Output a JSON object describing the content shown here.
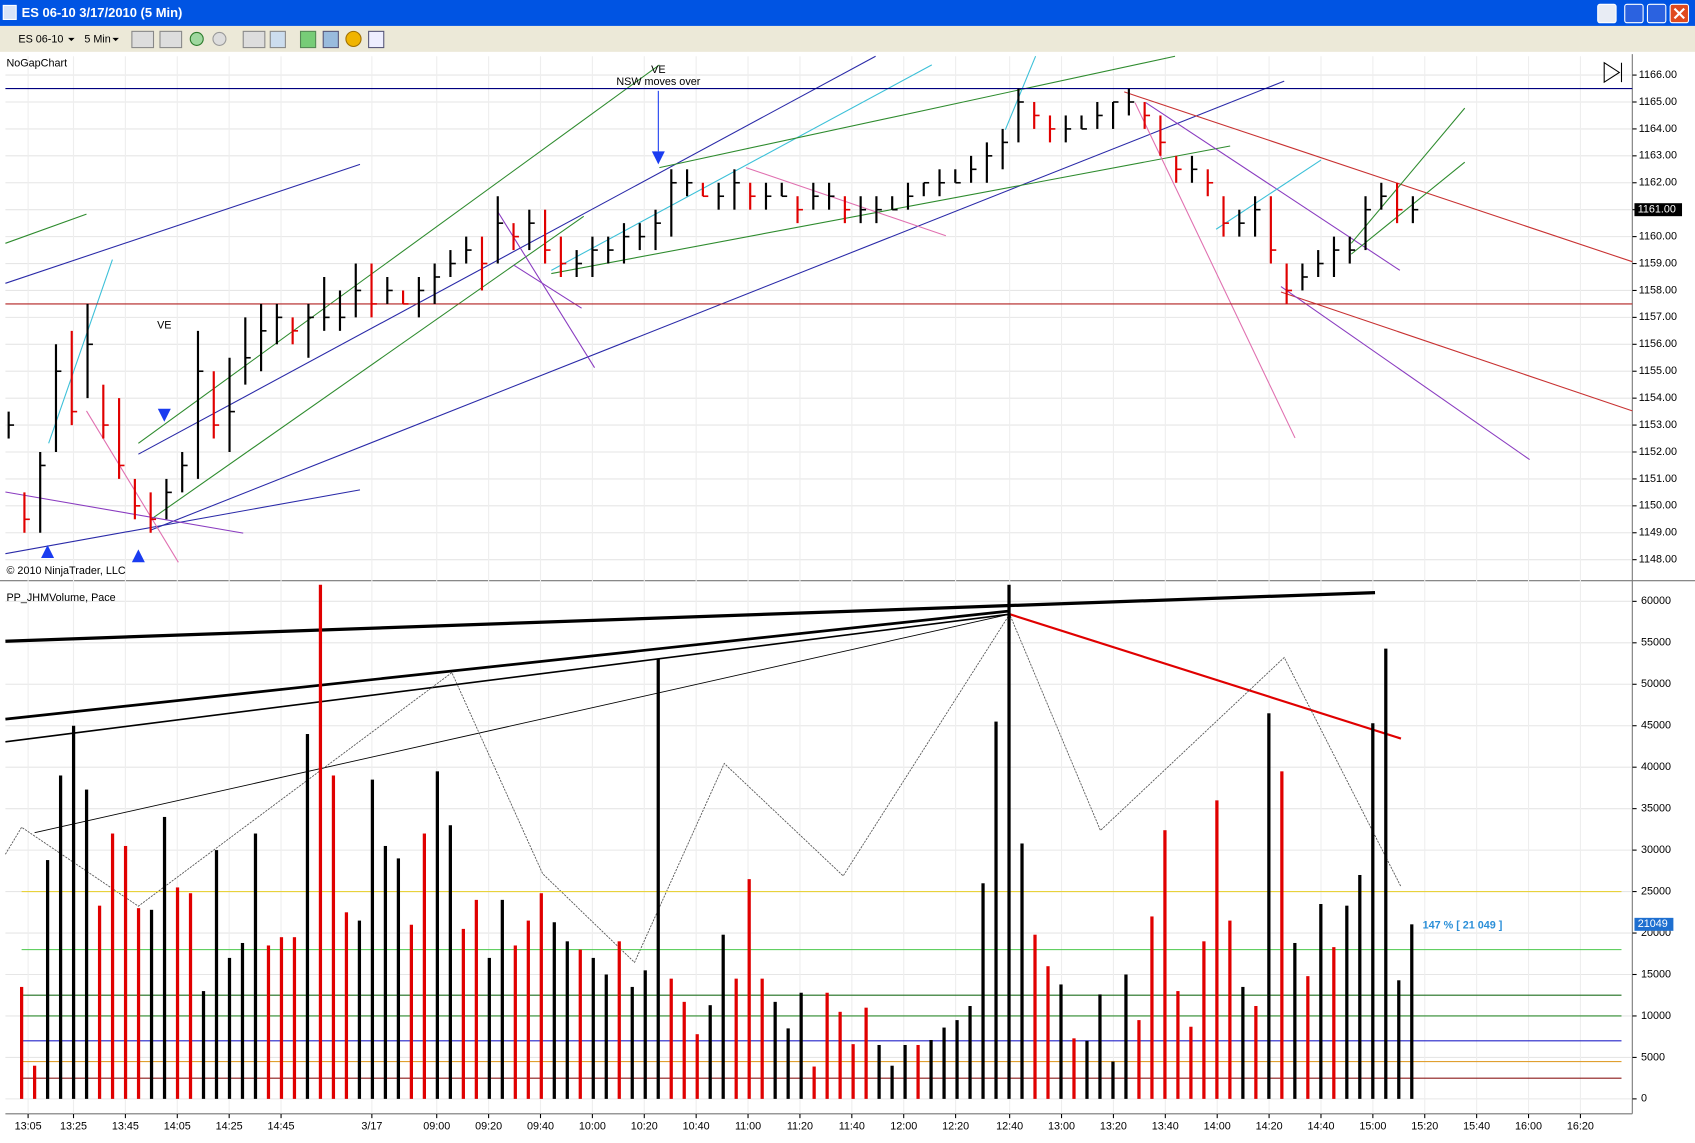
{
  "window": {
    "title": "ES 06-10  3/17/2010 (5 Min)"
  },
  "toolbar": {
    "instrument": "ES 06-10",
    "interval": "5 Min"
  },
  "chart_data": [
    {
      "type": "ohlc",
      "title": "NoGapChart",
      "copyright": "© 2010 NinjaTrader, LLC",
      "annotations": [
        "VE",
        "VE",
        "NSW moves over"
      ],
      "high": [
        1153.5,
        1150.5,
        1152,
        1156,
        1156.5,
        1157.5,
        1154.5,
        1154,
        1151,
        1150.5,
        1151,
        1152,
        1156.5,
        1155,
        1155.5,
        1157,
        1157.5,
        1157.5,
        1157,
        1157.5,
        1158.5,
        1158,
        1159,
        1159,
        1158.5,
        1158,
        1158.5,
        1159,
        1159.5,
        1160,
        1160,
        1161.5,
        1160.5,
        1161,
        1161,
        1160,
        1159.5,
        1160,
        1160,
        1160.5,
        1160.5,
        1161,
        1162.5,
        1162.5,
        1162,
        1162,
        1162.5,
        1162,
        1162,
        1162,
        1161.5,
        1162,
        1162,
        1161.5,
        1161.5,
        1161.5,
        1161.5,
        1162,
        1162,
        1162.5,
        1162.5,
        1163,
        1163.5,
        1164,
        1165.5,
        1165,
        1164.5,
        1164.5,
        1164.5,
        1165,
        1165,
        1165.5,
        1165,
        1164.5,
        1163,
        1163,
        1162.5,
        1161.5,
        1161,
        1161.5,
        1161.5,
        1159,
        1159,
        1159.5,
        1160,
        1160,
        1161.5,
        1162,
        1162,
        1161.5
      ],
      "low": [
        1152.5,
        1149,
        1149,
        1152,
        1153,
        1154,
        1152.5,
        1151,
        1149.5,
        1149,
        1149.5,
        1150.5,
        1151,
        1152.5,
        1152,
        1154.5,
        1155,
        1156,
        1156,
        1155.5,
        1156.5,
        1156.5,
        1157,
        1157,
        1157.5,
        1157.5,
        1157,
        1157.5,
        1158.5,
        1159,
        1158,
        1159,
        1159.5,
        1159.5,
        1159,
        1158.5,
        1158.5,
        1158.5,
        1159,
        1159,
        1159.5,
        1159.5,
        1160,
        1161.5,
        1161.5,
        1161,
        1161,
        1161,
        1161,
        1161.5,
        1160.5,
        1161,
        1161,
        1160.5,
        1160.5,
        1160.5,
        1161,
        1161,
        1161.5,
        1161.5,
        1162,
        1162,
        1162,
        1162.5,
        1163.5,
        1164,
        1163.5,
        1163.5,
        1164,
        1164,
        1164,
        1164.5,
        1164,
        1163,
        1162,
        1162,
        1161.5,
        1160,
        1160,
        1160,
        1159,
        1157.5,
        1158,
        1158.5,
        1158.5,
        1159,
        1159.5,
        1161,
        1160.5,
        1160.5
      ],
      "close": [
        1153,
        1149.5,
        1151.5,
        1155,
        1153.5,
        1156,
        1153,
        1151.5,
        1150,
        1149.5,
        1150.5,
        1151.5,
        1155,
        1153,
        1153.5,
        1155.5,
        1156.5,
        1157,
        1156.5,
        1157,
        1157,
        1157,
        1158,
        1157.5,
        1158,
        1157.5,
        1158,
        1158.5,
        1159,
        1159.5,
        1159,
        1160.5,
        1160,
        1160.5,
        1159.5,
        1159,
        1159,
        1159.5,
        1159.5,
        1160,
        1160,
        1160.5,
        1162,
        1162,
        1161.5,
        1161.5,
        1162,
        1161.5,
        1161.5,
        1161.5,
        1161,
        1161.5,
        1161.5,
        1161,
        1161,
        1161,
        1161,
        1161.5,
        1162,
        1162,
        1162,
        1162.5,
        1163,
        1163.5,
        1165,
        1164.5,
        1164,
        1164,
        1164,
        1164.5,
        1165,
        1165,
        1164.5,
        1163.5,
        1162.5,
        1162.5,
        1162,
        1160.5,
        1160.5,
        1161,
        1159.5,
        1158,
        1158.5,
        1159,
        1159.5,
        1159.5,
        1161,
        1161.5,
        1161,
        1161
      ],
      "ylim": [
        1147.3,
        1166.7
      ],
      "yticks": [
        {
          "value": 1148,
          "label": "1148.00"
        },
        {
          "value": 1149,
          "label": "1149.00"
        },
        {
          "value": 1150,
          "label": "1150.00"
        },
        {
          "value": 1151,
          "label": "1151.00"
        },
        {
          "value": 1152,
          "label": "1152.00"
        },
        {
          "value": 1153,
          "label": "1153.00"
        },
        {
          "value": 1154,
          "label": "1154.00"
        },
        {
          "value": 1155,
          "label": "1155.00"
        },
        {
          "value": 1156,
          "label": "1156.00"
        },
        {
          "value": 1157,
          "label": "1157.00"
        },
        {
          "value": 1158,
          "label": "1158.00"
        },
        {
          "value": 1159,
          "label": "1159.00"
        },
        {
          "value": 1160,
          "label": "1160.00"
        },
        {
          "value": 1161,
          "label": "1161.00"
        },
        {
          "value": 1162,
          "label": "1162.00"
        },
        {
          "value": 1163,
          "label": "1163.00"
        },
        {
          "value": 1164,
          "label": "1164.00"
        },
        {
          "value": 1165,
          "label": "1165.00"
        },
        {
          "value": 1166,
          "label": "1166.00"
        }
      ],
      "last_price": {
        "value": 1161,
        "label": "1161.00"
      },
      "levels": [
        {
          "value": 1165.5,
          "color": "#00007f"
        },
        {
          "value": 1157.5,
          "color": "#b22222"
        }
      ],
      "grid": true
    },
    {
      "type": "bar",
      "title": "PP_JHMVolume, Pace",
      "pace_label": "147 % [ 21 049 ]",
      "values": [
        13500,
        4000,
        28800,
        39000,
        45000,
        37300,
        23300,
        32000,
        30500,
        23000,
        22800,
        34000,
        25500,
        24800,
        13000,
        30000,
        17000,
        18800,
        32000,
        18500,
        19500,
        19500,
        44000,
        62000,
        39000,
        22500,
        21500,
        38500,
        30500,
        29000,
        21000,
        32000,
        39500,
        33000,
        20500,
        24000,
        17000,
        24000,
        18500,
        21500,
        24800,
        21300,
        19000,
        18000,
        17000,
        15000,
        19000,
        13500,
        15500,
        53000,
        14500,
        11700,
        7800,
        11300,
        19800,
        14500,
        26500,
        14500,
        11700,
        8500,
        12800,
        3900,
        12800,
        10500,
        6600,
        11000,
        6500,
        4000,
        6500,
        6500,
        7100,
        8600,
        9500,
        11200,
        26000,
        45500,
        62000,
        30800,
        19800,
        16000,
        13800,
        7300,
        7000,
        12600,
        4500,
        15000,
        9500,
        22000,
        32400,
        13000,
        8700,
        19000,
        36000,
        21500,
        13500,
        11200,
        46500,
        39500,
        18800,
        14800,
        23500,
        18300,
        23300,
        27000,
        45300,
        54300,
        14300,
        21049
      ],
      "colors": [
        "#e00000",
        "#e00000",
        "#000000",
        "#000000",
        "#000000",
        "#000000",
        "#e00000",
        "#e00000",
        "#e00000",
        "#e00000",
        "#000000",
        "#000000",
        "#e00000",
        "#e00000",
        "#000000",
        "#000000",
        "#000000",
        "#000000",
        "#000000",
        "#e00000",
        "#e00000",
        "#e00000",
        "#000000",
        "#e00000",
        "#e00000",
        "#e00000",
        "#000000",
        "#000000",
        "#000000",
        "#000000",
        "#e00000",
        "#e00000",
        "#000000",
        "#000000",
        "#e00000",
        "#e00000",
        "#000000",
        "#000000",
        "#e00000",
        "#e00000",
        "#e00000",
        "#000000",
        "#000000",
        "#e00000",
        "#000000",
        "#000000",
        "#e00000",
        "#000000",
        "#000000",
        "#000000",
        "#e00000",
        "#e00000",
        "#e00000",
        "#000000",
        "#000000",
        "#e00000",
        "#e00000",
        "#e00000",
        "#000000",
        "#000000",
        "#000000",
        "#e00000",
        "#e00000",
        "#e00000",
        "#e00000",
        "#e00000",
        "#000000",
        "#000000",
        "#000000",
        "#e00000",
        "#000000",
        "#000000",
        "#000000",
        "#000000",
        "#000000",
        "#000000",
        "#000000",
        "#000000",
        "#e00000",
        "#e00000",
        "#000000",
        "#e00000",
        "#000000",
        "#000000",
        "#000000",
        "#000000",
        "#e00000",
        "#e00000",
        "#e00000",
        "#e00000",
        "#e00000",
        "#e00000",
        "#e00000",
        "#e00000",
        "#000000",
        "#e00000",
        "#000000",
        "#e00000",
        "#000000",
        "#e00000",
        "#000000",
        "#e00000",
        "#000000",
        "#000000",
        "#000000",
        "#000000",
        "#000000",
        "#000000"
      ],
      "ylim": [
        -1800,
        62100
      ],
      "yticks": [
        0,
        5000,
        10000,
        15000,
        20000,
        25000,
        30000,
        35000,
        40000,
        45000,
        50000,
        55000,
        60000
      ],
      "levels": [
        {
          "value": 25000,
          "color": "#e8d23c"
        },
        {
          "value": 18000,
          "color": "#4cc84c"
        },
        {
          "value": 12500,
          "color": "#1f6f1f"
        },
        {
          "value": 10000,
          "color": "#2e8b2e"
        },
        {
          "value": 7000,
          "color": "#2323c8"
        },
        {
          "value": 4500,
          "color": "#e0a030"
        },
        {
          "value": 2500,
          "color": "#8b1a1a"
        }
      ],
      "xtick_labels": [
        "13:05",
        "13:25",
        "13:45",
        "14:05",
        "14:25",
        "14:45",
        "3/17",
        "09:00",
        "09:20",
        "09:40",
        "10:00",
        "10:20",
        "10:40",
        "11:00",
        "11:20",
        "11:40",
        "12:00",
        "12:20",
        "12:40",
        "13:00",
        "13:20",
        "13:40",
        "14:00",
        "14:20",
        "14:40",
        "15:00",
        "15:20",
        "15:40",
        "16:00",
        "16:20"
      ],
      "grid": true
    }
  ]
}
